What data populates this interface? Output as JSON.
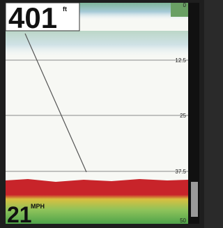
{
  "depth_reading": {
    "value": "401",
    "unit": "ft"
  },
  "speed_reading": {
    "value": "21",
    "unit": "MPH"
  },
  "depth_scale": {
    "labels": [
      "0",
      "12.5",
      "25",
      "37.5",
      "50"
    ]
  }
}
